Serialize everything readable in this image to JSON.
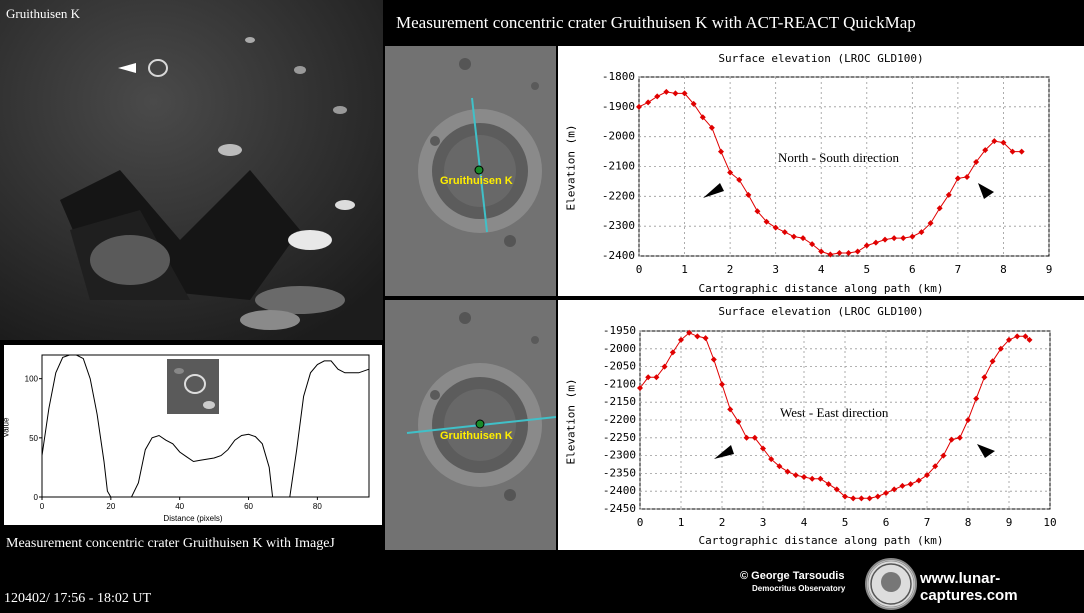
{
  "moon_photo": {
    "label": "Gruithuisen K"
  },
  "header": {
    "title": "Measurement concentric crater Gruithuisen K with ACT-REACT QuickMap"
  },
  "top_panel": {
    "crater_name": "Gruithuisen K"
  },
  "bottom_panel": {
    "crater_name": "Gruithuisen K"
  },
  "imagej": {
    "caption": "Measurement concentric crater Gruithuisen K with ImageJ"
  },
  "footer": {
    "datestamp": "120402/ 17:56 - 18:02 UT",
    "credit_name": "© George Tarsoudis",
    "credit_observatory": "Democritus Observatory",
    "website": "www.lunar-captures.com"
  },
  "colors": {
    "series": "#e00000",
    "profile_line": "#40c0c8",
    "crater_label": "#ffee00"
  },
  "chart_data": [
    {
      "type": "line",
      "title": "Surface elevation (LROC GLD100)",
      "xlabel": "Cartographic distance along path (km)",
      "ylabel": "Elevation (m)",
      "annotation": "North - South direction",
      "xlim": [
        0,
        9
      ],
      "ylim": [
        -2400,
        -1800
      ],
      "xticks": [
        "0",
        "1",
        "2",
        "3",
        "4",
        "5",
        "6",
        "7",
        "8",
        "9"
      ],
      "yticks": [
        "-1800",
        "-1900",
        "-2000",
        "-2100",
        "-2200",
        "-2300",
        "-2400"
      ],
      "grid": true,
      "x": [
        0,
        0.2,
        0.4,
        0.6,
        0.8,
        1.0,
        1.2,
        1.4,
        1.6,
        1.8,
        2.0,
        2.2,
        2.4,
        2.6,
        2.8,
        3.0,
        3.2,
        3.4,
        3.6,
        3.8,
        4.0,
        4.2,
        4.4,
        4.6,
        4.8,
        5.0,
        5.2,
        5.4,
        5.6,
        5.8,
        6.0,
        6.2,
        6.4,
        6.6,
        6.8,
        7.0,
        7.2,
        7.4,
        7.6,
        7.8,
        8.0,
        8.2,
        8.4
      ],
      "y": [
        -1900,
        -1885,
        -1865,
        -1850,
        -1855,
        -1855,
        -1890,
        -1935,
        -1970,
        -2050,
        -2120,
        -2145,
        -2195,
        -2250,
        -2285,
        -2305,
        -2320,
        -2335,
        -2340,
        -2360,
        -2385,
        -2395,
        -2390,
        -2390,
        -2385,
        -2365,
        -2355,
        -2345,
        -2340,
        -2340,
        -2335,
        -2320,
        -2290,
        -2240,
        -2195,
        -2140,
        -2135,
        -2085,
        -2045,
        -2015,
        -2020,
        -2050,
        -2050
      ]
    },
    {
      "type": "line",
      "title": "Surface elevation (LROC GLD100)",
      "xlabel": "Cartographic distance along path (km)",
      "ylabel": "Elevation (m)",
      "annotation": "West - East direction",
      "xlim": [
        0,
        10
      ],
      "ylim": [
        -2450,
        -1950
      ],
      "xticks": [
        "0",
        "1",
        "2",
        "3",
        "4",
        "5",
        "6",
        "7",
        "8",
        "9",
        "10"
      ],
      "yticks": [
        "-1950",
        "-2000",
        "-2050",
        "-2100",
        "-2150",
        "-2200",
        "-2250",
        "-2300",
        "-2350",
        "-2400",
        "-2450"
      ],
      "grid": true,
      "x": [
        0,
        0.2,
        0.4,
        0.6,
        0.8,
        1.0,
        1.2,
        1.4,
        1.6,
        1.8,
        2.0,
        2.2,
        2.4,
        2.6,
        2.8,
        3.0,
        3.2,
        3.4,
        3.6,
        3.8,
        4.0,
        4.2,
        4.4,
        4.6,
        4.8,
        5.0,
        5.2,
        5.4,
        5.6,
        5.8,
        6.0,
        6.2,
        6.4,
        6.6,
        6.8,
        7.0,
        7.2,
        7.4,
        7.6,
        7.8,
        8.0,
        8.2,
        8.4,
        8.6,
        8.8,
        9.0,
        9.2,
        9.4,
        9.5
      ],
      "y": [
        -2110,
        -2080,
        -2080,
        -2050,
        -2010,
        -1975,
        -1955,
        -1965,
        -1970,
        -2030,
        -2100,
        -2170,
        -2205,
        -2250,
        -2250,
        -2280,
        -2310,
        -2330,
        -2345,
        -2355,
        -2360,
        -2365,
        -2365,
        -2380,
        -2395,
        -2415,
        -2420,
        -2420,
        -2420,
        -2415,
        -2405,
        -2395,
        -2385,
        -2380,
        -2370,
        -2355,
        -2330,
        -2300,
        -2255,
        -2250,
        -2200,
        -2140,
        -2080,
        -2035,
        -2000,
        -1975,
        -1965,
        -1965,
        -1975
      ]
    },
    {
      "type": "line",
      "title": "",
      "xlabel": "Distance (pixels)",
      "ylabel": "Value",
      "xlim": [
        0,
        95
      ],
      "ylim": [
        0,
        120
      ],
      "xticks": [
        "0",
        "20",
        "40",
        "60",
        "80"
      ],
      "yticks": [
        "0",
        "50",
        "100"
      ],
      "grid": false,
      "x": [
        0,
        2,
        4,
        6,
        8,
        10,
        12,
        14,
        16,
        18,
        19,
        20,
        22,
        24,
        26,
        28,
        30,
        32,
        34,
        36,
        38,
        40,
        42,
        44,
        46,
        48,
        50,
        52,
        54,
        56,
        58,
        60,
        62,
        64,
        66,
        67,
        68,
        70,
        72,
        74,
        76,
        78,
        80,
        82,
        84,
        86,
        88,
        90,
        92,
        95
      ],
      "y": [
        35,
        75,
        105,
        118,
        120,
        120,
        117,
        100,
        70,
        30,
        5,
        0,
        0,
        0,
        0,
        12,
        40,
        50,
        52,
        48,
        45,
        38,
        34,
        30,
        31,
        32,
        33,
        35,
        40,
        48,
        52,
        53,
        51,
        45,
        25,
        0,
        0,
        0,
        0,
        40,
        85,
        105,
        112,
        115,
        115,
        108,
        105,
        105,
        105,
        108
      ]
    }
  ]
}
